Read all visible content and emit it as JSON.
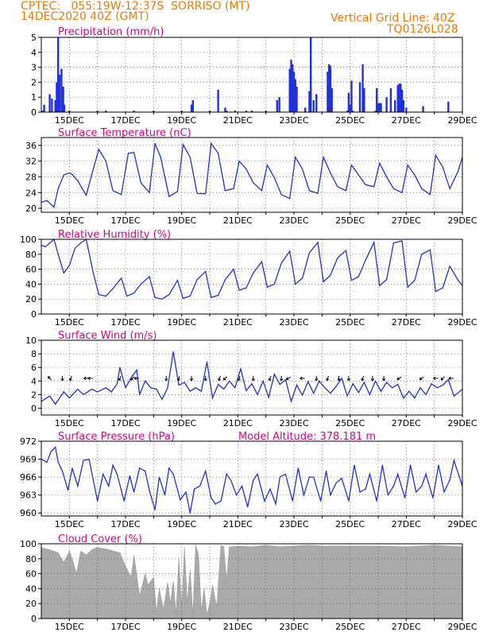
{
  "header": {
    "line1_left": "CPTEC:   055:19W-12:37S  SORRISO (MT)",
    "line2_left": "14DEC2020 40Z (GMT)",
    "line1_right": "Vertical Grid Line: 40Z",
    "line2_right": "TQ0126L028",
    "color": "#f07800"
  },
  "colors": {
    "title": "#e0007a",
    "series": "#2030e0",
    "cloud": "#aaaaaa",
    "frame": "#000000",
    "grid": "#555555"
  },
  "x_ticks": [
    "15DEC",
    "17DEC",
    "19DEC",
    "21DEC",
    "23DEC",
    "25DEC",
    "27DEC",
    "29DEC"
  ],
  "chart_data": [
    {
      "id": "precip",
      "type": "bar",
      "title": "Precipitation (mm/h)",
      "ylim": [
        0,
        5
      ],
      "yticks": [
        0,
        1,
        2,
        3,
        4,
        5
      ],
      "x_unit": "day of December 2020",
      "xlim": [
        14.0,
        29.0
      ],
      "x": [
        14.05,
        14.1,
        14.3,
        14.38,
        14.5,
        14.55,
        14.6,
        14.65,
        14.72,
        14.78,
        14.82,
        15.0,
        16.0,
        16.3,
        17.3,
        18.0,
        19.0,
        19.35,
        19.4,
        20.0,
        20.3,
        20.55,
        20.6,
        20.9,
        21.3,
        21.5,
        22.0,
        22.4,
        22.48,
        22.85,
        22.9,
        22.95,
        23.0,
        23.05,
        23.1,
        23.4,
        23.55,
        23.6,
        23.7,
        23.8,
        24.2,
        24.25,
        24.3,
        24.35,
        24.9,
        24.95,
        25.0,
        25.05,
        25.1,
        25.35,
        25.45,
        25.5,
        25.9,
        25.95,
        26.0,
        26.05,
        26.1,
        26.3,
        26.45,
        26.6,
        26.7,
        26.75,
        26.8,
        26.85,
        26.9,
        27.0,
        27.6,
        28.5
      ],
      "values": [
        0.1,
        0.5,
        1.2,
        0.9,
        0.8,
        2.0,
        5.0,
        2.5,
        2.9,
        1.7,
        0.5,
        0.1,
        0.1,
        0.1,
        0.1,
        0.1,
        0.1,
        0.5,
        0.8,
        0.1,
        1.5,
        0.3,
        0.1,
        0.1,
        0.1,
        0.1,
        0.1,
        0.8,
        1.0,
        2.9,
        3.5,
        3.2,
        2.7,
        2.2,
        1.7,
        0.3,
        1.4,
        5.0,
        0.8,
        1.2,
        2.7,
        3.2,
        3.1,
        1.6,
        0.1,
        1.3,
        0.5,
        2.1,
        0.1,
        2.0,
        3.2,
        1.6,
        0.1,
        1.6,
        0.6,
        0.6,
        0.6,
        1.0,
        1.6,
        0.8,
        1.8,
        1.9,
        1.9,
        1.5,
        0.8,
        0.3,
        0.4,
        0.7
      ]
    },
    {
      "id": "temp",
      "type": "line",
      "title": "Surface Temperature (nC)",
      "ylim": [
        19,
        38
      ],
      "yticks": [
        20,
        24,
        28,
        32,
        36
      ],
      "x_unit": "day of December 2020",
      "x": [
        14.0,
        14.2,
        14.45,
        14.6,
        14.8,
        15.0,
        15.1,
        15.3,
        15.6,
        15.85,
        16.05,
        16.3,
        16.55,
        16.85,
        17.1,
        17.3,
        17.55,
        17.85,
        18.05,
        18.25,
        18.55,
        18.85,
        19.05,
        19.3,
        19.55,
        19.85,
        20.05,
        20.3,
        20.55,
        20.85,
        21.05,
        21.3,
        21.55,
        21.85,
        22.05,
        22.3,
        22.55,
        22.85,
        23.05,
        23.3,
        23.55,
        23.85,
        24.05,
        24.3,
        24.55,
        24.85,
        25.05,
        25.3,
        25.55,
        25.85,
        26.05,
        26.3,
        26.55,
        26.85,
        27.05,
        27.3,
        27.55,
        27.85,
        28.05,
        28.3,
        28.55,
        28.85,
        29.0
      ],
      "values": [
        21.5,
        22.0,
        20.3,
        25.0,
        28.5,
        29.0,
        28.6,
        27.0,
        23.3,
        30.0,
        35.0,
        32.0,
        24.5,
        23.5,
        34.0,
        34.2,
        26.5,
        24.0,
        36.5,
        33.0,
        23.0,
        24.3,
        36.2,
        33.0,
        23.8,
        23.7,
        36.5,
        34.0,
        24.5,
        25.0,
        32.0,
        30.0,
        26.5,
        24.5,
        31.0,
        27.8,
        23.5,
        22.5,
        33.0,
        30.0,
        24.5,
        23.8,
        33.0,
        29.0,
        25.5,
        24.5,
        31.0,
        28.5,
        26.0,
        25.5,
        31.5,
        28.0,
        25.0,
        24.0,
        31.0,
        28.5,
        25.0,
        23.5,
        33.5,
        30.5,
        25.0,
        29.5,
        33.0
      ],
      "series_color": "#2030e0"
    },
    {
      "id": "rh",
      "type": "line",
      "title": "Relative Humidity (%)",
      "ylim": [
        0,
        100
      ],
      "yticks": [
        0,
        20,
        40,
        60,
        80,
        100
      ],
      "x_unit": "day of December 2020",
      "x": [
        14.0,
        14.15,
        14.45,
        14.6,
        14.8,
        15.0,
        15.2,
        15.4,
        15.6,
        15.85,
        16.05,
        16.3,
        16.55,
        16.85,
        17.05,
        17.3,
        17.55,
        17.85,
        18.05,
        18.3,
        18.55,
        18.85,
        19.05,
        19.3,
        19.55,
        19.85,
        20.05,
        20.3,
        20.55,
        20.85,
        21.05,
        21.3,
        21.55,
        21.85,
        22.05,
        22.3,
        22.55,
        22.85,
        23.05,
        23.3,
        23.55,
        23.85,
        24.05,
        24.3,
        24.55,
        24.85,
        25.05,
        25.3,
        25.55,
        25.85,
        26.05,
        26.3,
        26.55,
        26.85,
        27.05,
        27.3,
        27.55,
        27.85,
        28.05,
        28.3,
        28.55,
        28.85,
        29.0
      ],
      "values": [
        92,
        90,
        100,
        80,
        55,
        65,
        88,
        95,
        100,
        55,
        26,
        24,
        34,
        48,
        24,
        28,
        40,
        50,
        22,
        20,
        26,
        45,
        21,
        24,
        46,
        57,
        22,
        25,
        46,
        60,
        32,
        35,
        55,
        70,
        36,
        40,
        68,
        84,
        40,
        48,
        82,
        96,
        43,
        52,
        75,
        85,
        45,
        50,
        72,
        96,
        38,
        46,
        95,
        98,
        36,
        45,
        80,
        86,
        30,
        35,
        64,
        45,
        38
      ],
      "series_color": "#2030e0"
    },
    {
      "id": "wind",
      "type": "line",
      "title": "Surface Wind (m/s)",
      "ylim": [
        -1,
        10
      ],
      "yticks": [
        0,
        2,
        4,
        6,
        8,
        10
      ],
      "x_unit": "day of December 2020",
      "x": [
        14.0,
        14.3,
        14.5,
        14.8,
        15.0,
        15.3,
        15.5,
        15.8,
        16.0,
        16.3,
        16.5,
        16.7,
        16.8,
        17.0,
        17.2,
        17.4,
        17.5,
        17.7,
        17.9,
        18.1,
        18.3,
        18.5,
        18.7,
        18.9,
        19.1,
        19.3,
        19.5,
        19.7,
        19.9,
        20.1,
        20.3,
        20.5,
        20.7,
        20.9,
        21.1,
        21.3,
        21.5,
        21.7,
        21.9,
        22.1,
        22.3,
        22.5,
        22.7,
        22.9,
        23.1,
        23.3,
        23.5,
        23.7,
        23.9,
        24.1,
        24.3,
        24.5,
        24.7,
        24.9,
        25.1,
        25.3,
        25.5,
        25.7,
        25.9,
        26.1,
        26.3,
        26.5,
        26.7,
        26.9,
        27.1,
        27.3,
        27.5,
        27.7,
        27.9,
        28.1,
        28.3,
        28.5,
        28.7,
        29.0
      ],
      "values": [
        1.0,
        1.8,
        0.6,
        2.4,
        1.5,
        2.8,
        2.0,
        2.8,
        2.4,
        3.0,
        2.4,
        3.6,
        6.0,
        3.0,
        4.5,
        5.6,
        2.0,
        4.0,
        3.0,
        2.8,
        1.3,
        3.0,
        8.3,
        3.4,
        3.8,
        2.5,
        3.0,
        2.5,
        6.8,
        1.5,
        3.5,
        2.8,
        4.0,
        3.0,
        5.8,
        2.6,
        3.6,
        2.0,
        4.0,
        1.6,
        5.0,
        3.5,
        4.2,
        1.0,
        3.4,
        1.9,
        3.9,
        2.2,
        4.0,
        3.0,
        2.2,
        3.2,
        4.4,
        1.8,
        3.6,
        2.3,
        3.8,
        2.0,
        4.0,
        2.5,
        3.8,
        3.0,
        3.5,
        1.5,
        2.5,
        1.5,
        3.0,
        2.0,
        3.6,
        3.0,
        3.4,
        4.2,
        1.8,
        2.8
      ],
      "series_color": "#2030e0",
      "barbs": {
        "x": [
          14.3,
          14.75,
          15.05,
          15.6,
          15.75,
          16.8,
          17.25,
          17.4,
          18.45,
          18.9,
          19.35,
          19.85,
          20.35,
          20.55,
          21.05,
          21.55,
          22.15,
          22.55,
          22.8,
          23.3,
          23.8,
          24.2,
          24.6,
          24.95,
          25.45,
          25.8,
          26.2,
          26.75,
          27.55,
          28.05,
          28.3,
          28.6
        ],
        "direction_deg": [
          315,
          180,
          200,
          270,
          270,
          200,
          225,
          270,
          180,
          200,
          180,
          180,
          200,
          225,
          200,
          180,
          200,
          180,
          240,
          270,
          180,
          200,
          180,
          180,
          200,
          180,
          180,
          240,
          240,
          270,
          225,
          270
        ]
      }
    },
    {
      "id": "pressure",
      "type": "line",
      "title": "Surface Pressure (hPa)",
      "annotation": "Model Altitude: 378.181 m",
      "ylim": [
        959.5,
        972
      ],
      "yticks": [
        960,
        963,
        966,
        969,
        972
      ],
      "x_unit": "day of December 2020",
      "x": [
        14.0,
        14.2,
        14.35,
        14.5,
        14.6,
        14.75,
        14.95,
        15.1,
        15.3,
        15.5,
        15.7,
        15.85,
        16.0,
        16.2,
        16.4,
        16.55,
        16.7,
        16.95,
        17.15,
        17.3,
        17.5,
        17.7,
        17.85,
        18.05,
        18.2,
        18.4,
        18.55,
        18.7,
        18.95,
        19.15,
        19.3,
        19.45,
        19.65,
        19.85,
        20.05,
        20.2,
        20.4,
        20.6,
        20.75,
        20.95,
        21.15,
        21.35,
        21.55,
        21.7,
        21.95,
        22.15,
        22.35,
        22.5,
        22.7,
        22.95,
        23.15,
        23.35,
        23.55,
        23.7,
        23.95,
        24.15,
        24.3,
        24.5,
        24.7,
        24.95,
        25.15,
        25.35,
        25.55,
        25.7,
        25.95,
        26.15,
        26.35,
        26.55,
        26.7,
        26.95,
        27.15,
        27.35,
        27.55,
        27.7,
        27.95,
        28.15,
        28.35,
        28.55,
        28.7,
        29.0
      ],
      "values": [
        969.0,
        968.5,
        970.3,
        971.0,
        968.5,
        967.0,
        963.8,
        967.5,
        964.5,
        968.8,
        969.0,
        965.5,
        962.0,
        966.5,
        964.5,
        968.0,
        966.5,
        962.0,
        966.2,
        963.5,
        967.5,
        967.0,
        963.8,
        960.5,
        966.0,
        963.0,
        967.5,
        966.5,
        962.2,
        963.5,
        960.0,
        964.0,
        964.5,
        967.0,
        962.5,
        961.5,
        962.0,
        966.5,
        965.5,
        963.0,
        964.5,
        961.0,
        965.5,
        966.5,
        962.0,
        964.0,
        961.5,
        966.0,
        966.5,
        962.0,
        967.5,
        963.0,
        966.0,
        966.0,
        962.0,
        967.0,
        963.0,
        965.0,
        965.8,
        962.0,
        968.0,
        963.5,
        964.0,
        966.5,
        962.0,
        968.0,
        963.0,
        964.5,
        966.5,
        962.5,
        968.0,
        963.5,
        964.5,
        966.5,
        962.5,
        968.0,
        963.5,
        965.5,
        968.8,
        964.5
      ],
      "series_color": "#2030e0"
    },
    {
      "id": "cloud",
      "type": "area",
      "title": "Cloud Cover (%)",
      "ylim": [
        0,
        100
      ],
      "yticks": [
        0,
        20,
        40,
        60,
        80,
        100
      ],
      "x_unit": "day of December 2020",
      "x": [
        14.0,
        14.3,
        14.6,
        14.8,
        15.0,
        15.1,
        15.25,
        15.4,
        15.5,
        15.6,
        15.8,
        16.0,
        16.3,
        16.6,
        16.8,
        17.0,
        17.2,
        17.3,
        17.5,
        17.7,
        17.8,
        18.0,
        18.1,
        18.2,
        18.35,
        18.5,
        18.6,
        18.7,
        18.8,
        18.9,
        19.0,
        19.1,
        19.2,
        19.3,
        19.4,
        19.5,
        19.6,
        19.7,
        19.8,
        19.9,
        20.0,
        20.1,
        20.25,
        20.4,
        20.5,
        20.6,
        20.7,
        20.8,
        21.0,
        21.5,
        22.0,
        22.5,
        23.0,
        23.5,
        24.0,
        25.0,
        26.0,
        27.0,
        28.0,
        29.0
      ],
      "values": [
        95,
        92,
        88,
        75,
        90,
        80,
        60,
        90,
        88,
        85,
        92,
        95,
        93,
        90,
        88,
        70,
        55,
        85,
        30,
        60,
        45,
        55,
        8,
        40,
        12,
        48,
        20,
        50,
        5,
        80,
        15,
        95,
        20,
        65,
        5,
        98,
        85,
        10,
        40,
        5,
        20,
        45,
        15,
        98,
        96,
        50,
        96,
        96,
        97,
        96,
        98,
        96,
        97,
        98,
        97,
        97,
        97,
        96,
        98,
        96
      ],
      "series_color": "#aaaaaa"
    }
  ]
}
